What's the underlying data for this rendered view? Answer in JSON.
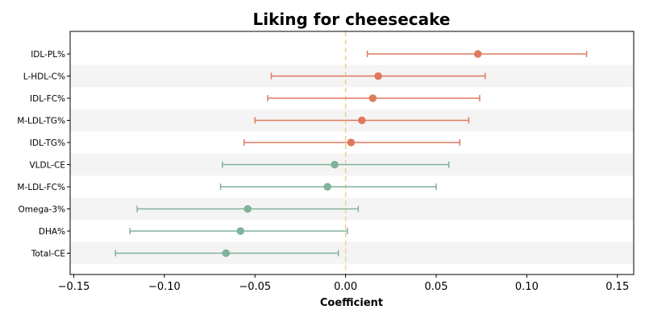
{
  "chart_data": {
    "type": "forest",
    "title": "Liking for cheesecake",
    "xlabel": "Coefficient",
    "ylabel": "",
    "xlim": [
      -0.152,
      0.159
    ],
    "xticks": [
      -0.15,
      -0.1,
      -0.05,
      0.0,
      0.05,
      0.1,
      0.15
    ],
    "xtick_labels": [
      "−0.15",
      "−0.10",
      "−0.05",
      "0.00",
      "0.05",
      "0.10",
      "0.15"
    ],
    "reference_line": 0,
    "grid": false,
    "alternating_row_shading": true,
    "colors": {
      "positive": "#e07a5f",
      "negative": "#81b29a",
      "reference": "#f2cc8f",
      "row_shade": "#f4f4f4"
    },
    "categories": [
      "IDL-PL%",
      "L-HDL-C%",
      "IDL-FC%",
      "M-LDL-TG%",
      "IDL-TG%",
      "VLDL-CE",
      "M-LDL-FC%",
      "Omega-3%",
      "DHA%",
      "Total-CE"
    ],
    "estimates": [
      0.073,
      0.018,
      0.015,
      0.009,
      0.003,
      -0.006,
      -0.01,
      -0.054,
      -0.058,
      -0.066
    ],
    "ci_lower": [
      0.012,
      -0.041,
      -0.043,
      -0.05,
      -0.056,
      -0.068,
      -0.069,
      -0.115,
      -0.119,
      -0.127
    ],
    "ci_upper": [
      0.133,
      0.077,
      0.074,
      0.068,
      0.063,
      0.057,
      0.05,
      0.007,
      0.001,
      -0.004
    ]
  }
}
